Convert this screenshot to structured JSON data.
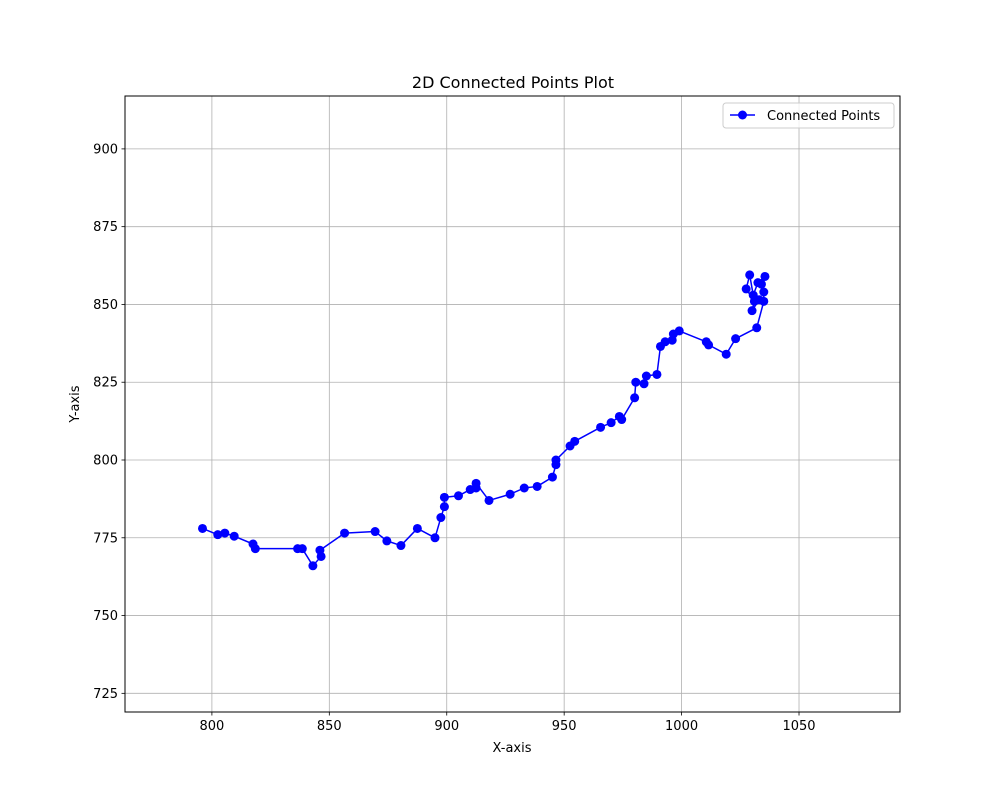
{
  "chart_data": {
    "type": "line",
    "title": "2D Connected Points Plot",
    "xlabel": "X-axis",
    "ylabel": "Y-axis",
    "xlim": [
      763,
      1093
    ],
    "ylim": [
      719,
      917
    ],
    "xticks": [
      800,
      850,
      900,
      950,
      1000,
      1050
    ],
    "yticks": [
      725,
      750,
      775,
      800,
      825,
      850,
      875,
      900
    ],
    "grid": true,
    "legend_position": "top-right",
    "series": [
      {
        "name": "Connected Points",
        "color": "#0000ff",
        "marker": "circle",
        "points": [
          [
            796,
            778
          ],
          [
            802.5,
            776
          ],
          [
            805.5,
            776.5
          ],
          [
            809.5,
            775.5
          ],
          [
            817.5,
            773
          ],
          [
            818.5,
            771.5
          ],
          [
            836.5,
            771.5
          ],
          [
            838.5,
            771.5
          ],
          [
            843,
            766
          ],
          [
            846.5,
            769
          ],
          [
            846,
            771
          ],
          [
            856.5,
            776.5
          ],
          [
            869.5,
            777
          ],
          [
            874.5,
            774
          ],
          [
            880.5,
            772.5
          ],
          [
            887.5,
            778
          ],
          [
            895,
            775
          ],
          [
            897.5,
            781.5
          ],
          [
            899,
            785
          ],
          [
            899,
            788
          ],
          [
            905,
            788.5
          ],
          [
            910,
            790.5
          ],
          [
            912.5,
            791
          ],
          [
            912.5,
            792.5
          ],
          [
            918,
            787
          ],
          [
            927,
            789
          ],
          [
            933,
            791
          ],
          [
            938.5,
            791.5
          ],
          [
            945,
            794.5
          ],
          [
            946.5,
            798.5
          ],
          [
            946.5,
            800
          ],
          [
            952.5,
            804.5
          ],
          [
            954.5,
            806
          ],
          [
            965.5,
            810.5
          ],
          [
            970,
            812
          ],
          [
            973.5,
            814
          ],
          [
            974.5,
            813
          ],
          [
            980,
            820
          ],
          [
            980.5,
            825
          ],
          [
            984,
            824.5
          ],
          [
            985,
            827
          ],
          [
            989.5,
            827.5
          ],
          [
            991,
            836.5
          ],
          [
            993,
            838
          ],
          [
            996,
            838.5
          ],
          [
            996.5,
            840.5
          ],
          [
            999,
            841.5
          ],
          [
            1010.5,
            838
          ],
          [
            1011.5,
            837
          ],
          [
            1019,
            834
          ],
          [
            1023,
            839
          ],
          [
            1032,
            842.5
          ],
          [
            1035,
            851
          ],
          [
            1035,
            854
          ],
          [
            1034,
            856.5
          ],
          [
            1035.5,
            859
          ],
          [
            1032.5,
            857
          ],
          [
            1030.5,
            853
          ],
          [
            1029,
            859.5
          ],
          [
            1027.5,
            855
          ],
          [
            1031,
            851
          ],
          [
            1030,
            848
          ],
          [
            1033,
            851.5
          ]
        ]
      }
    ]
  }
}
